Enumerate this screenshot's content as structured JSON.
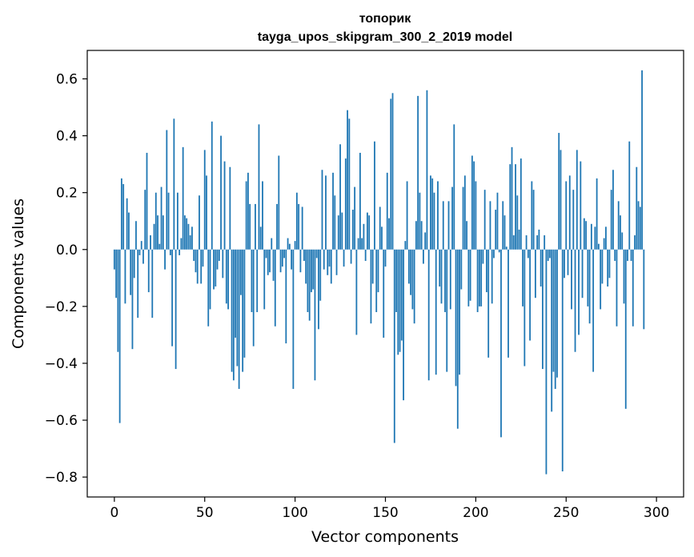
{
  "chart_data": {
    "type": "bar",
    "title_line1": "топорик",
    "title_line2": "tayga_upos_skipgram_300_2_2019 model",
    "xlabel": "Vector components",
    "ylabel": "Components values",
    "xlim": [
      -15,
      315
    ],
    "ylim": [
      -0.87,
      0.7
    ],
    "xticks": [
      0,
      50,
      100,
      150,
      200,
      250,
      300
    ],
    "xtick_labels": [
      "0",
      "50",
      "100",
      "150",
      "200",
      "250",
      "300"
    ],
    "yticks": [
      -0.8,
      -0.6,
      -0.4,
      -0.2,
      0.0,
      0.2,
      0.4,
      0.6
    ],
    "ytick_labels": [
      "−0.8",
      "−0.6",
      "−0.4",
      "−0.2",
      "0.0",
      "0.2",
      "0.4",
      "0.6"
    ],
    "color": "#1f77b4",
    "values": [
      -0.07,
      -0.17,
      -0.36,
      -0.61,
      0.25,
      0.23,
      -0.19,
      0.18,
      0.13,
      -0.16,
      -0.35,
      -0.1,
      0.1,
      -0.24,
      -0.02,
      0.03,
      -0.05,
      0.21,
      0.34,
      -0.15,
      0.05,
      -0.24,
      0.09,
      0.2,
      0.12,
      0.02,
      0.22,
      0.12,
      -0.07,
      0.42,
      0.2,
      -0.02,
      -0.34,
      0.46,
      -0.42,
      0.2,
      -0.02,
      0.04,
      0.36,
      0.12,
      0.11,
      0.09,
      0.05,
      0.08,
      -0.04,
      -0.08,
      -0.12,
      0.19,
      -0.12,
      -0.06,
      0.35,
      0.26,
      -0.27,
      -0.21,
      0.45,
      -0.14,
      -0.13,
      -0.07,
      -0.04,
      0.4,
      -0.1,
      0.31,
      -0.19,
      -0.21,
      0.29,
      -0.43,
      -0.46,
      -0.31,
      -0.41,
      -0.49,
      -0.16,
      -0.43,
      -0.38,
      0.24,
      0.27,
      0.16,
      -0.22,
      -0.34,
      0.16,
      -0.22,
      0.44,
      0.08,
      0.24,
      -0.21,
      -0.03,
      -0.09,
      -0.08,
      0.04,
      -0.11,
      -0.27,
      0.16,
      0.33,
      -0.08,
      -0.06,
      -0.03,
      -0.33,
      0.04,
      0.02,
      -0.07,
      -0.49,
      0.03,
      0.2,
      0.16,
      -0.08,
      0.15,
      -0.04,
      -0.12,
      -0.22,
      -0.25,
      -0.15,
      -0.14,
      -0.46,
      -0.03,
      -0.28,
      -0.18,
      0.28,
      -0.07,
      0.26,
      -0.09,
      -0.06,
      -0.12,
      0.27,
      0.19,
      -0.09,
      0.12,
      0.37,
      0.13,
      -0.06,
      0.32,
      0.49,
      0.46,
      -0.05,
      0.14,
      0.22,
      -0.3,
      0.04,
      0.34,
      0.04,
      0.09,
      -0.04,
      0.13,
      0.12,
      -0.26,
      -0.12,
      0.38,
      -0.22,
      -0.15,
      0.15,
      0.08,
      -0.31,
      -0.06,
      0.27,
      0.11,
      0.53,
      0.55,
      -0.68,
      -0.22,
      -0.37,
      -0.36,
      -0.32,
      -0.53,
      0.03,
      0.24,
      -0.12,
      -0.16,
      -0.21,
      -0.26,
      0.1,
      0.54,
      0.2,
      0.1,
      -0.05,
      0.06,
      0.56,
      -0.46,
      0.26,
      0.25,
      0.2,
      -0.44,
      0.24,
      -0.13,
      -0.19,
      0.17,
      -0.22,
      -0.43,
      0.17,
      -0.21,
      0.22,
      0.44,
      -0.48,
      -0.63,
      -0.44,
      -0.14,
      0.22,
      0.26,
      0.1,
      -0.2,
      -0.18,
      0.33,
      0.31,
      0.24,
      -0.22,
      -0.2,
      -0.2,
      -0.05,
      0.21,
      -0.15,
      -0.38,
      0.17,
      -0.19,
      -0.03,
      0.14,
      0.2,
      -0.01,
      -0.66,
      0.17,
      0.12,
      0.01,
      -0.38,
      0.3,
      0.36,
      0.05,
      0.3,
      0.19,
      0.07,
      0.32,
      -0.2,
      -0.41,
      0.05,
      -0.03,
      -0.32,
      0.24,
      0.21,
      -0.17,
      0.05,
      0.07,
      -0.13,
      -0.42,
      0.05,
      -0.79,
      -0.04,
      -0.03,
      -0.57,
      -0.43,
      -0.49,
      -0.45,
      0.41,
      0.35,
      -0.78,
      -0.1,
      0.24,
      -0.09,
      0.26,
      -0.21,
      0.21,
      -0.36,
      0.35,
      -0.3,
      0.31,
      -0.17,
      0.11,
      0.1,
      -0.2,
      -0.26,
      0.09,
      -0.43,
      0.08,
      0.25,
      0.02,
      -0.21,
      -0.12,
      0.04,
      0.08,
      -0.13,
      -0.1,
      0.21,
      0.28,
      -0.04,
      -0.27,
      0.17,
      0.12,
      0.06,
      -0.19,
      -0.56,
      -0.04,
      0.38,
      -0.04,
      -0.27,
      0.05,
      0.29,
      0.17,
      0.15,
      0.63,
      -0.28
    ]
  }
}
